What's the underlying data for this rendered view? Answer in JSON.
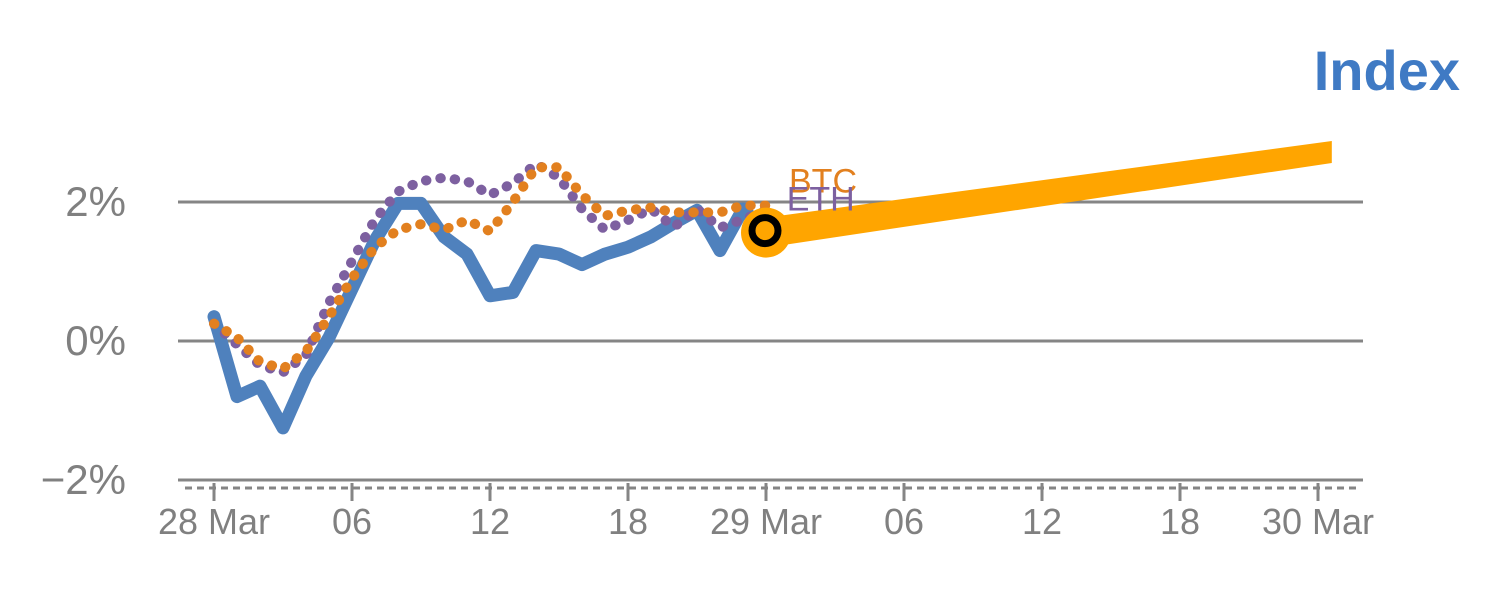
{
  "title": {
    "text": "Index",
    "color": "#3f7ac4"
  },
  "chart_data": {
    "type": "line",
    "title": "Index",
    "description": "Percent change of crypto Index vs BTC and ETH, hourly from 28 Mar 00:00 to 29 Mar 00:00, with an orange projection band for the Index extending to 30 Mar.",
    "y_axis": {
      "tick_labels": [
        "2%",
        "0%",
        "−2%"
      ],
      "tick_values_pct": [
        2,
        0,
        -2
      ],
      "range_pct": [
        -2.6,
        3.2
      ],
      "grid": true
    },
    "x_axis": {
      "unit": "hours since 28 Mar 00:00",
      "major_tick_hours": [
        0,
        6,
        12,
        18,
        24,
        30,
        36,
        42,
        48
      ],
      "major_tick_labels": [
        "28 Mar",
        "06",
        "12",
        "18",
        "29 Mar",
        "06",
        "12",
        "18",
        "30 Mar"
      ],
      "minor_ticks": "hourly dashed row along axis"
    },
    "x_hours": [
      0,
      1,
      2,
      3,
      4,
      5,
      6,
      7,
      8,
      9,
      10,
      11,
      12,
      13,
      14,
      15,
      16,
      17,
      18,
      19,
      20,
      21,
      22,
      23,
      24
    ],
    "series": [
      {
        "name": "Index",
        "line_style": "solid",
        "color": "#4f81bd",
        "values_pct": [
          0.35,
          -0.8,
          -0.65,
          -1.25,
          -0.5,
          0.05,
          0.75,
          1.45,
          1.98,
          1.98,
          1.5,
          1.25,
          0.65,
          0.7,
          1.3,
          1.25,
          1.1,
          1.25,
          1.35,
          1.5,
          1.7,
          1.88,
          1.3,
          1.9,
          1.56
        ]
      },
      {
        "name": "ETH",
        "line_style": "dotted",
        "color": "#7d60a0",
        "values_pct": [
          0.25,
          -0.05,
          -0.35,
          -0.45,
          -0.2,
          0.55,
          1.15,
          1.75,
          2.15,
          2.3,
          2.35,
          2.3,
          2.1,
          2.27,
          2.55,
          2.35,
          1.9,
          1.6,
          1.74,
          1.9,
          1.64,
          1.9,
          1.63,
          1.75,
          1.88
        ]
      },
      {
        "name": "BTC",
        "line_style": "dotted",
        "color": "#e2801f",
        "values_pct": [
          0.25,
          0.05,
          -0.3,
          -0.4,
          -0.15,
          0.35,
          0.9,
          1.35,
          1.6,
          1.68,
          1.6,
          1.74,
          1.58,
          2.0,
          2.5,
          2.5,
          2.1,
          1.8,
          1.88,
          1.92,
          1.85,
          1.85,
          1.85,
          1.95,
          1.95
        ]
      }
    ],
    "projection_band": {
      "series": "Index",
      "color": "#ffa500",
      "start": {
        "hour": 24,
        "value_pct": 1.56
      },
      "end": {
        "hour": 48.6,
        "value_pct": 2.72
      }
    },
    "current_marker": {
      "hour": 24,
      "value_pct": 1.56,
      "ring_color": "#000000",
      "blob_color": "#ffa500"
    },
    "annotations": [
      {
        "text": "BTC",
        "color": "#e2801f",
        "hour": 25.0,
        "value_pct": 2.14
      },
      {
        "text": "ETH",
        "color": "#7d60a0",
        "hour": 24.9,
        "value_pct": 1.88
      }
    ],
    "style": {
      "grid_color": "#858585",
      "axis_text_color": "#808080"
    },
    "legend_position": "labels at line ends (BTC, ETH) and top-right title (Index)"
  }
}
